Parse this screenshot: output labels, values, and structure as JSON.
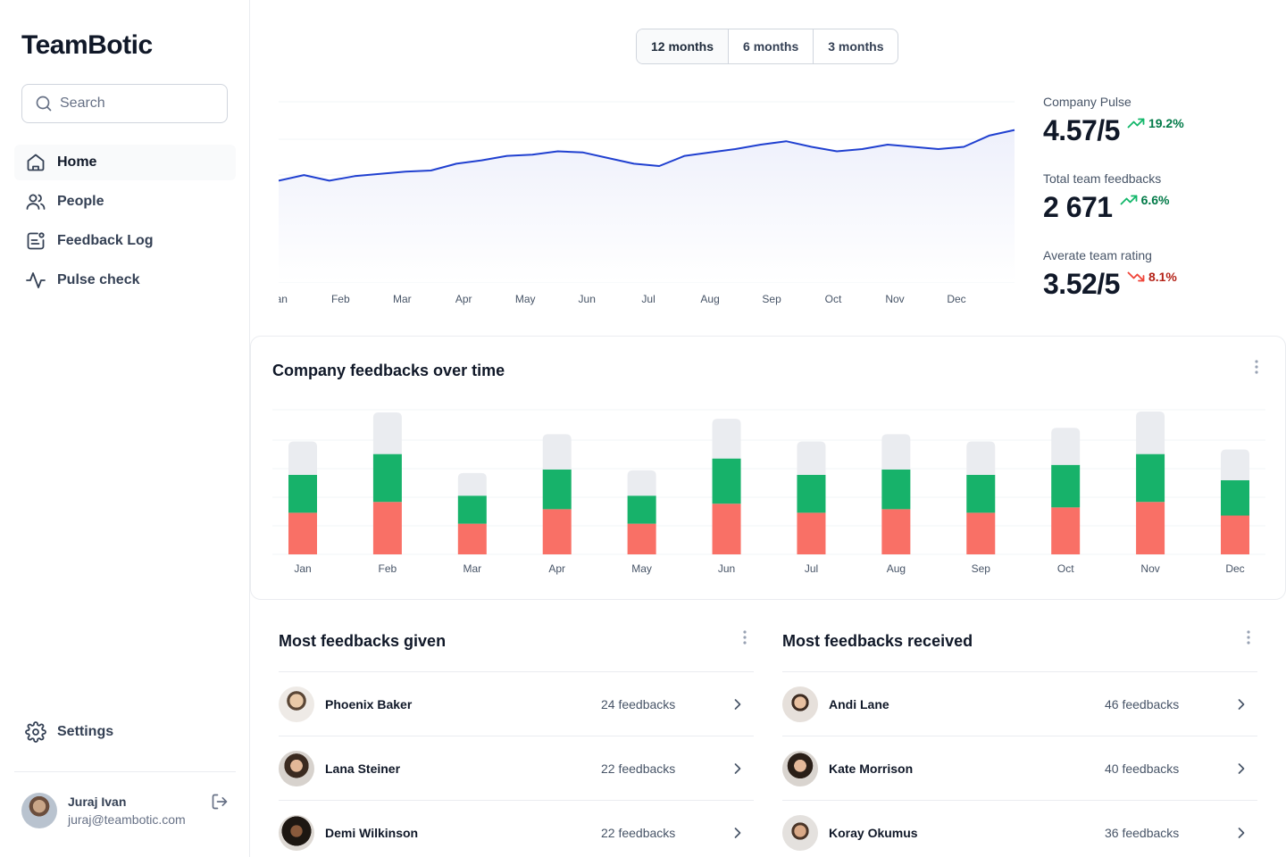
{
  "app": {
    "brand": "TeamBotic"
  },
  "search": {
    "placeholder": "Search"
  },
  "sidebar": {
    "items": [
      {
        "label": "Home",
        "icon": "home-icon",
        "active": true
      },
      {
        "label": "People",
        "icon": "users-icon",
        "active": false
      },
      {
        "label": "Feedback Log",
        "icon": "feedback-log-icon",
        "active": false
      },
      {
        "label": "Pulse check",
        "icon": "activity-icon",
        "active": false
      }
    ],
    "settings_label": "Settings"
  },
  "user": {
    "name": "Juraj Ivan",
    "email": "juraj@teambotic.com"
  },
  "range": {
    "options": [
      "12 months",
      "6 months",
      "3 months"
    ],
    "selected": "12 months"
  },
  "pulse": {
    "months": [
      "Jan",
      "Feb",
      "Mar",
      "Apr",
      "May",
      "Jun",
      "Jul",
      "Aug",
      "Sep",
      "Oct",
      "Nov",
      "Dec"
    ],
    "values": [
      3.3,
      3.35,
      3.3,
      3.34,
      3.36,
      3.38,
      3.39,
      3.45,
      3.48,
      3.52,
      3.53,
      3.56,
      3.55,
      3.5,
      3.45,
      3.43,
      3.52,
      3.55,
      3.58,
      3.62,
      3.65,
      3.6,
      3.56,
      3.58,
      3.62,
      3.6,
      3.58,
      3.6,
      3.7,
      3.75
    ],
    "line_color": "#2040d0",
    "fill_color": "#eef0fb"
  },
  "stats": {
    "company_pulse": {
      "label": "Company Pulse",
      "value": "4.57/5",
      "delta": "19.2%",
      "direction": "up"
    },
    "total_feedbacks": {
      "label": "Total team feedbacks",
      "value": "2 671",
      "delta": "6.6%",
      "direction": "up"
    },
    "avg_rating": {
      "label": "Averate team rating",
      "value": "3.52/5",
      "delta": "8.1%",
      "direction": "down"
    }
  },
  "feedback_card": {
    "title": "Company feedbacks over time"
  },
  "chart_data": {
    "type": "bar",
    "categories": [
      "Jan",
      "Feb",
      "Mar",
      "Apr",
      "May",
      "Jun",
      "Jul",
      "Aug",
      "Sep",
      "Oct",
      "Nov",
      "Dec"
    ],
    "series": [
      {
        "values": [
          46,
          58,
          34,
          50,
          34,
          56,
          46,
          50,
          46,
          52,
          58,
          43
        ],
        "color": "#f97066"
      },
      {
        "values": [
          42,
          53,
          31,
          44,
          31,
          50,
          42,
          44,
          42,
          47,
          53,
          39
        ],
        "color": "#17b26a"
      },
      {
        "values": [
          37,
          46,
          25,
          39,
          28,
          44,
          37,
          39,
          37,
          41,
          47,
          34
        ],
        "color": "#eaecf0"
      }
    ],
    "ylim": [
      0,
      160
    ],
    "stacked": true
  },
  "lists": {
    "given": {
      "title": "Most feedbacks given",
      "rows": [
        {
          "name": "Phoenix Baker",
          "count": "24 feedbacks"
        },
        {
          "name": "Lana Steiner",
          "count": "22 feedbacks"
        },
        {
          "name": "Demi Wilkinson",
          "count": "22 feedbacks"
        }
      ]
    },
    "received": {
      "title": "Most feedbacks received",
      "rows": [
        {
          "name": "Andi Lane",
          "count": "46 feedbacks"
        },
        {
          "name": "Kate Morrison",
          "count": "40 feedbacks"
        },
        {
          "name": "Koray Okumus",
          "count": "36 feedbacks"
        }
      ]
    }
  }
}
